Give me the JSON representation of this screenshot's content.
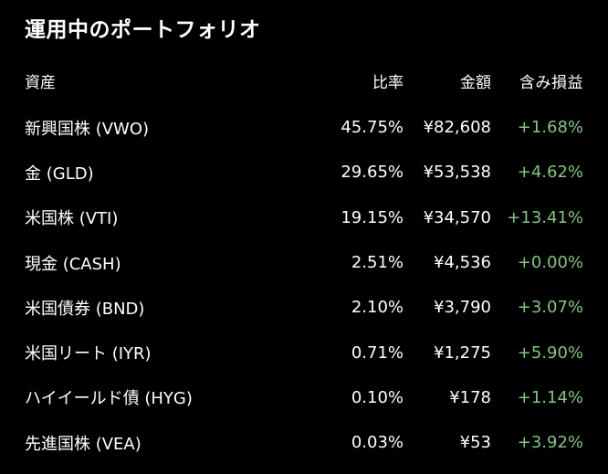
{
  "title": "運用中のポートフォリオ",
  "columns": {
    "asset": "資産",
    "ratio": "比率",
    "amount": "金額",
    "unrealized_pl": "含み損益"
  },
  "rows": [
    {
      "asset": "新興国株 (VWO)",
      "ratio": "45.75%",
      "amount": "¥82,608",
      "pl": "+1.68%"
    },
    {
      "asset": "金 (GLD)",
      "ratio": "29.65%",
      "amount": "¥53,538",
      "pl": "+4.62%"
    },
    {
      "asset": "米国株 (VTI)",
      "ratio": "19.15%",
      "amount": "¥34,570",
      "pl": "+13.41%"
    },
    {
      "asset": "現金 (CASH)",
      "ratio": "2.51%",
      "amount": "¥4,536",
      "pl": "+0.00%"
    },
    {
      "asset": "米国債券 (BND)",
      "ratio": "2.10%",
      "amount": "¥3,790",
      "pl": "+3.07%"
    },
    {
      "asset": "米国リート (IYR)",
      "ratio": "0.71%",
      "amount": "¥1,275",
      "pl": "+5.90%"
    },
    {
      "asset": "ハイイールド債 (HYG)",
      "ratio": "0.10%",
      "amount": "¥178",
      "pl": "+1.14%"
    },
    {
      "asset": "先進国株 (VEA)",
      "ratio": "0.03%",
      "amount": "¥53",
      "pl": "+3.92%"
    }
  ],
  "colors": {
    "background": "#000000",
    "text": "#ffffff",
    "positive": "#7fc87a"
  }
}
